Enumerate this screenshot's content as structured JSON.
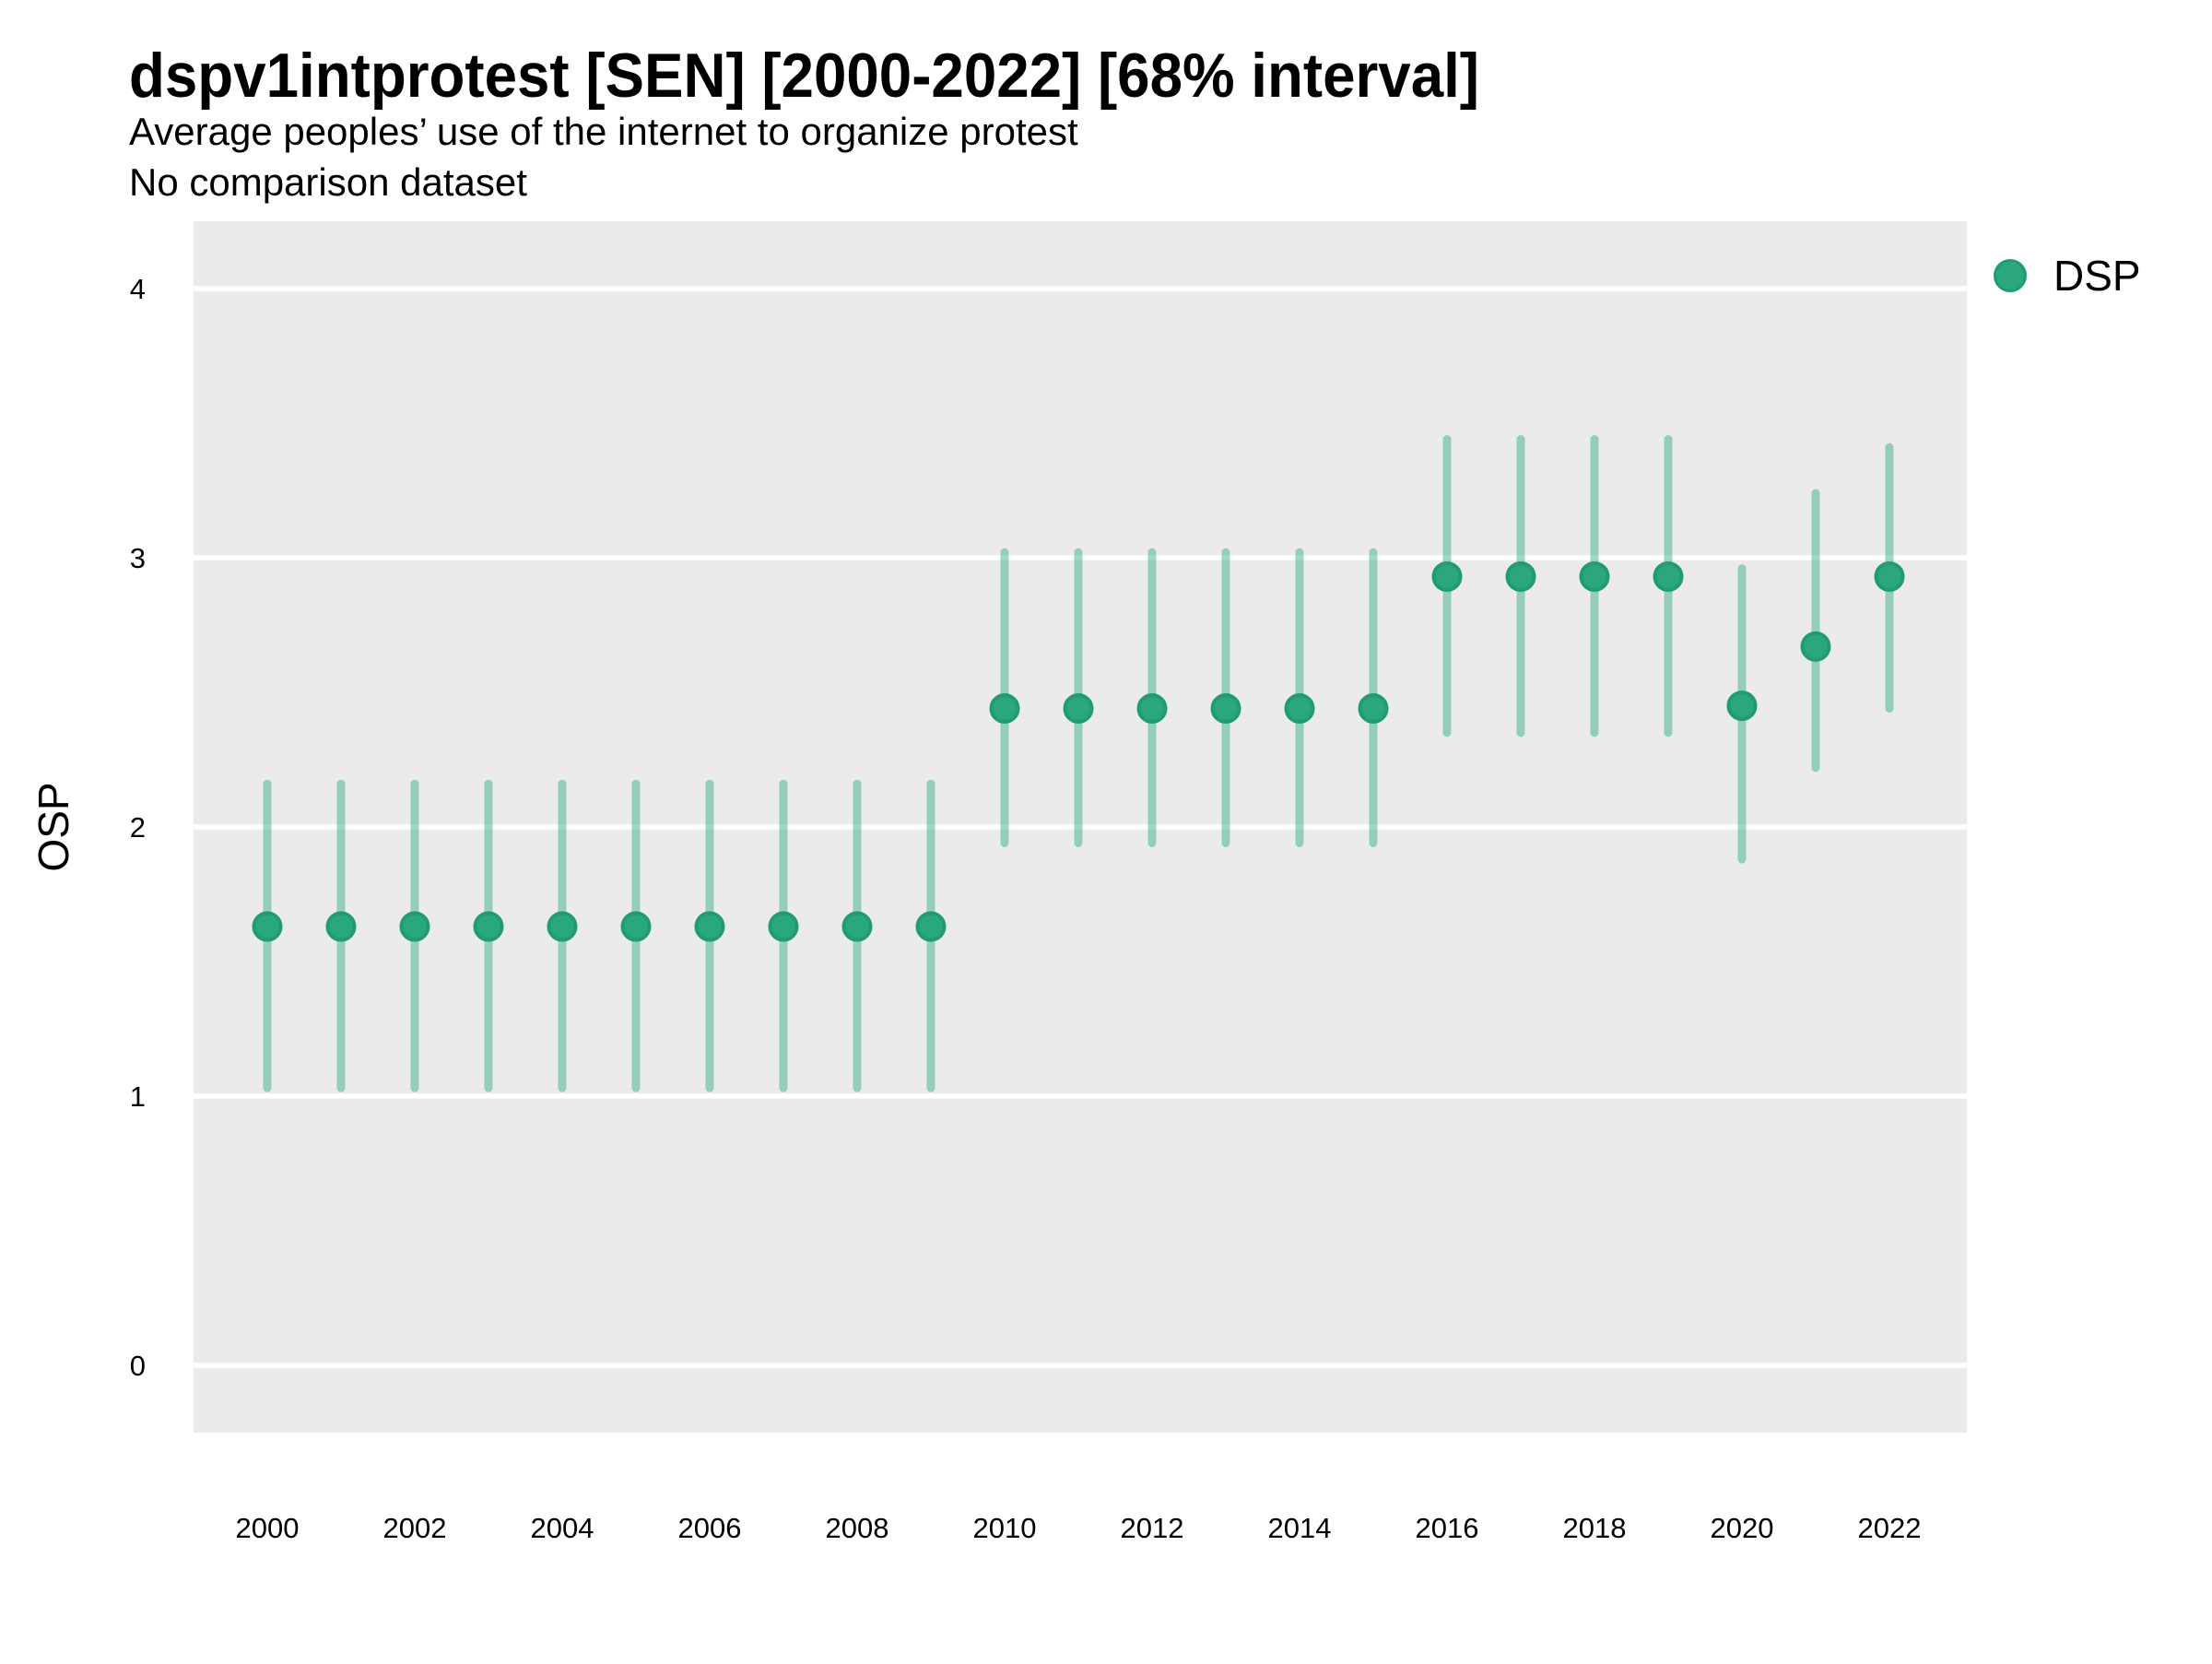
{
  "chart_data": {
    "type": "scatter",
    "subtype": "pointrange (point estimate with 68% credible interval)",
    "title": "dspv1intprotest [SEN] [2000-2022] [68% interval]",
    "subtitle": "Average peoples’ use of the internet to organize protest",
    "note": "No comparison dataset",
    "xlabel": "",
    "ylabel": "OSP",
    "legend": {
      "position": "right-top",
      "items": [
        {
          "label": "DSP",
          "color": "#2aa87c"
        }
      ]
    },
    "x": [
      2000,
      2001,
      2002,
      2003,
      2004,
      2005,
      2006,
      2007,
      2008,
      2009,
      2010,
      2011,
      2012,
      2013,
      2014,
      2015,
      2016,
      2017,
      2018,
      2019,
      2020,
      2021,
      2022
    ],
    "series": [
      {
        "name": "DSP",
        "point_color": "#2aa87c",
        "point_edge_color": "#1f9c70",
        "interval_color": "rgba(42,168,124,0.45)",
        "values": [
          1.63,
          1.63,
          1.63,
          1.63,
          1.63,
          1.63,
          1.63,
          1.63,
          1.63,
          1.63,
          2.44,
          2.44,
          2.44,
          2.44,
          2.44,
          2.44,
          2.93,
          2.93,
          2.93,
          2.93,
          2.45,
          2.67,
          2.93
        ],
        "lower": [
          1.03,
          1.03,
          1.03,
          1.03,
          1.03,
          1.03,
          1.03,
          1.03,
          1.03,
          1.03,
          1.94,
          1.94,
          1.94,
          1.94,
          1.94,
          1.94,
          2.35,
          2.35,
          2.35,
          2.35,
          1.88,
          2.22,
          2.44
        ],
        "upper": [
          2.16,
          2.16,
          2.16,
          2.16,
          2.16,
          2.16,
          2.16,
          2.16,
          2.16,
          2.16,
          3.02,
          3.02,
          3.02,
          3.02,
          3.02,
          3.02,
          3.44,
          3.44,
          3.44,
          3.44,
          2.96,
          3.24,
          3.41
        ]
      }
    ],
    "ylim": [
      0,
      4
    ],
    "yticks": [
      "0",
      "1",
      "2",
      "3",
      "4"
    ],
    "ytick_values": [
      0,
      1,
      2,
      3,
      4
    ],
    "xticks": [
      "2000",
      "2002",
      "2004",
      "2006",
      "2008",
      "2010",
      "2012",
      "2014",
      "2016",
      "2018",
      "2020",
      "2022"
    ],
    "xtick_values": [
      2000,
      2002,
      2004,
      2006,
      2008,
      2010,
      2012,
      2014,
      2016,
      2018,
      2020,
      2022
    ],
    "grid": "horizontal major gridlines only, white",
    "panel_bg": "#ebebeb",
    "gridline_color": "#ffffff",
    "text_color": "#000000"
  }
}
